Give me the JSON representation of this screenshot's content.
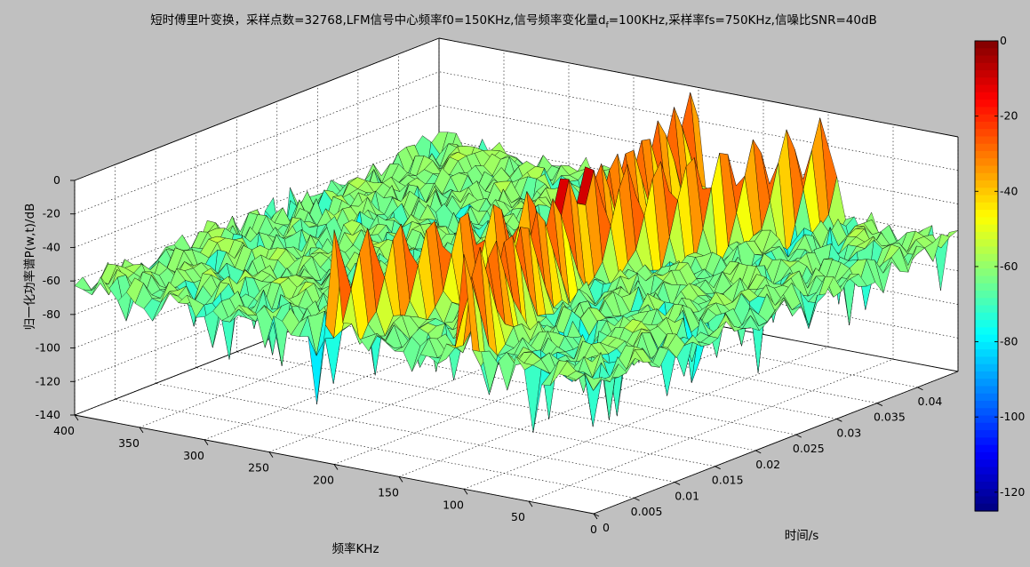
{
  "chart_data": {
    "type": "surface",
    "title": "短时傅里叶变换，采样点数=32768,LFM信号中心频率f0=150KHz,信号频率变化量",
    "title_d": "d",
    "title_sub": "f",
    "title_tail": "=100KHz,采样率fs=750KHz,信噪比SNR=40dB",
    "xlabel": "频率KHz",
    "ylabel": "时间/s",
    "zlabel": "归一化功率谱P(w,t)/dB",
    "x_range": [
      0,
      400
    ],
    "y_range": [
      0,
      0.045
    ],
    "z_range": [
      -140,
      0
    ],
    "x_ticks": [
      "0",
      "50",
      "100",
      "150",
      "200",
      "250",
      "300",
      "350",
      "400"
    ],
    "y_ticks": [
      "0",
      "0.005",
      "0.01",
      "0.015",
      "0.02",
      "0.025",
      "0.03",
      "0.035",
      "0.04"
    ],
    "z_ticks": [
      "0",
      "-20",
      "-40",
      "-60",
      "-80",
      "-100",
      "-120",
      "-140"
    ],
    "colorbar_ticks": [
      "0",
      "-20",
      "-40",
      "-60",
      "-80",
      "-100",
      "-120"
    ],
    "colorbar_range": [
      -125,
      0
    ],
    "noise_floor_db": -62,
    "grid": true,
    "colormap": "jet",
    "background_color": "#c0c0c0",
    "ridges": [
      {
        "f_start_khz": 200,
        "f_end_khz": 100,
        "t_start_s": 0,
        "t_end_s": 0.044,
        "peak_db": 0
      },
      {
        "f_start_khz": 100,
        "f_end_khz": 200,
        "t_start_s": 0,
        "t_end_s": 0.044,
        "peak_db": 0
      }
    ]
  }
}
